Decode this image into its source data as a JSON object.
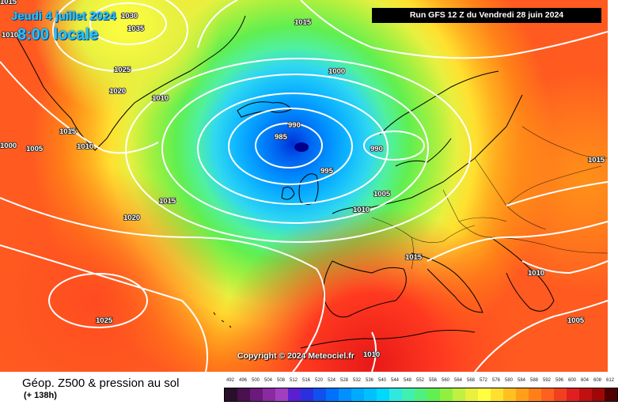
{
  "header": {
    "date": "Jeudi 4 juillet 2024",
    "time": "8:00 locale",
    "run": "Run GFS 12 Z du Vendredi 28 juin 2024"
  },
  "copyright": "Copyright © 2024 Meteociel.fr",
  "footer": {
    "title": "Géop. Z500 & pression au sol",
    "lead_time": "(+ 138h)"
  },
  "legend": {
    "values": [
      "492",
      "496",
      "500",
      "504",
      "508",
      "512",
      "516",
      "520",
      "524",
      "528",
      "532",
      "536",
      "540",
      "544",
      "548",
      "552",
      "556",
      "560",
      "564",
      "568",
      "572",
      "576",
      "580",
      "584",
      "588",
      "592",
      "596",
      "600",
      "604",
      "608",
      "612"
    ],
    "colors": [
      "#2a0f2a",
      "#4a1050",
      "#6a1a7a",
      "#8a2aa0",
      "#a040c0",
      "#5a1fd0",
      "#2a30e0",
      "#1050f0",
      "#0070ff",
      "#0090ff",
      "#00aaff",
      "#00c0ff",
      "#00d8ff",
      "#30e8e0",
      "#40f0b0",
      "#50f080",
      "#60f050",
      "#90f040",
      "#c0f040",
      "#e8f040",
      "#ffff40",
      "#ffe030",
      "#ffc020",
      "#ffa018",
      "#ff8018",
      "#ff6020",
      "#f04020",
      "#e02020",
      "#c01010",
      "#a00808",
      "#500000"
    ]
  },
  "isobar_labels": {
    "l1030": "1030",
    "l1035": "1035",
    "l1015a": "1015",
    "l1015b": "1015",
    "l1015c": "1015",
    "l1015d": "1015",
    "l1015e": "1015",
    "l1000a": "1000",
    "l1000b": "1000",
    "l1025a": "1025",
    "l1025b": "1025",
    "l1020a": "1020",
    "l1020b": "1020",
    "l1010a": "1010",
    "l1010b": "1010",
    "l1010c": "1010",
    "l1010d": "1010",
    "l1010e": "1010",
    "l1010f": "1010",
    "l1005a": "1005",
    "l1005b": "1005",
    "l1005c": "1005",
    "l990a": "990",
    "l990b": "990",
    "l985": "985",
    "l995": "995"
  }
}
